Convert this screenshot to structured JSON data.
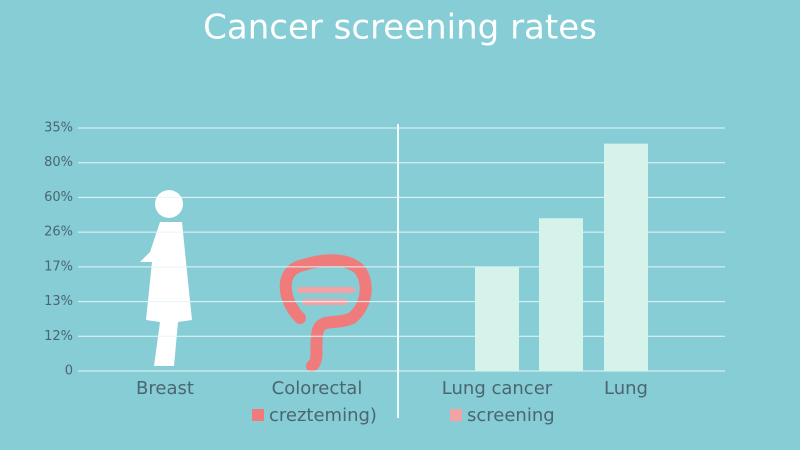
{
  "chart_data": {
    "type": "bar",
    "title": "Cancer screening rates",
    "categories": [
      "Breast",
      "Colorectal",
      "Lung cancer",
      null,
      "Lung"
    ],
    "values": [
      null,
      null,
      3,
      4.4,
      6.55
    ],
    "color": "#d5f3ea",
    "ylim": [
      0,
      7
    ],
    "yticks": [
      {
        "value": 0,
        "label": "0"
      },
      {
        "value": 1,
        "label": "12%"
      },
      {
        "value": 2,
        "label": "13%"
      },
      {
        "value": 3,
        "label": "17%"
      },
      {
        "value": 4,
        "label": "26%"
      },
      {
        "value": 5,
        "label": "60%"
      },
      {
        "value": 6,
        "label": "80%"
      },
      {
        "value": 7,
        "label": "35%"
      }
    ],
    "grid": true,
    "legend": [
      {
        "label": "crezteming)",
        "color": "#ef7b7b"
      },
      {
        "label": "screening",
        "color": "#f3a3a3"
      }
    ]
  }
}
